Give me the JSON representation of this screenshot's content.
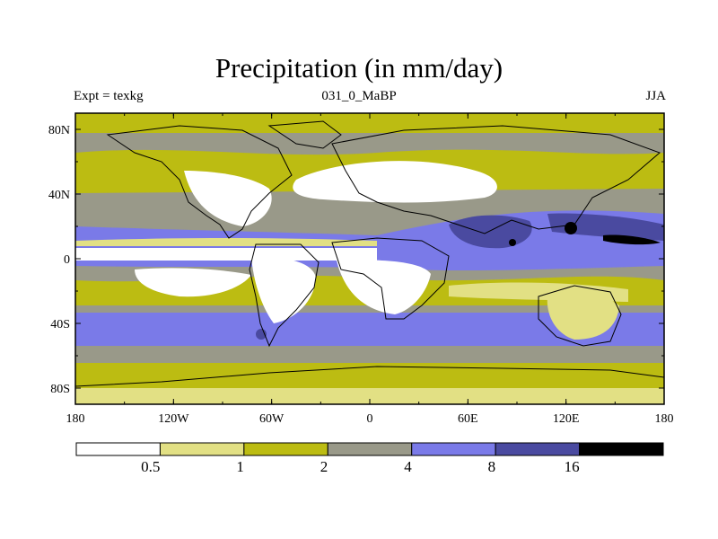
{
  "title": "Precipitation (in mm/day)",
  "left_string": "Expt = texkg",
  "center_string": "031_0_MaBP",
  "right_string": "JJA",
  "x_ticks": [
    "180",
    "120W",
    "60W",
    "0",
    "60E",
    "120E",
    "180"
  ],
  "y_ticks": [
    "80N",
    "40N",
    "0",
    "40S",
    "80S"
  ],
  "colorbar": {
    "colors": [
      "#ffffff",
      "#e2e084",
      "#bcbc12",
      "#999989",
      "#7a7ae8",
      "#4a4aa0",
      "#000000"
    ],
    "labels": [
      "0.5",
      "1",
      "2",
      "4",
      "8",
      "16"
    ]
  },
  "map": {
    "type": "filled-contour",
    "variable": "precipitation",
    "units": "mm/day",
    "projection": "cylindrical-equidistant",
    "lon_range": [
      -180,
      180
    ],
    "lat_range": [
      -90,
      90
    ]
  }
}
